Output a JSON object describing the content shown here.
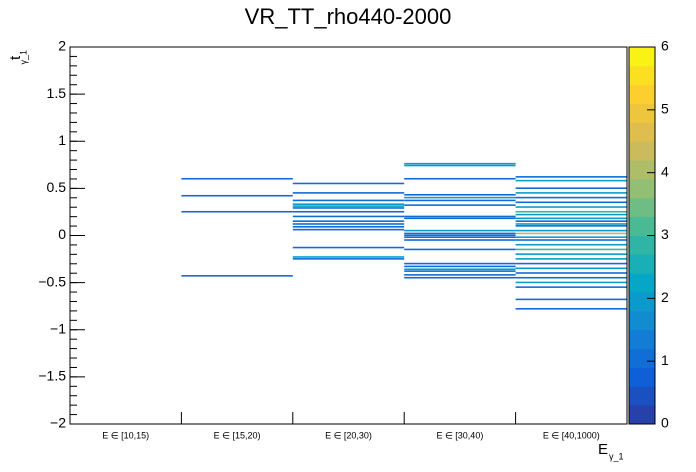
{
  "chart_data": {
    "type": "heatmap",
    "title": "VR_TT_rho440-2000",
    "categories": [
      "E ∈ [10,15)",
      "E ∈ [15,20)",
      "E ∈ [20,30)",
      "E ∈ [30,40)",
      "E ∈ [40,1000)"
    ],
    "x_label": "E",
    "x_label_sub": "γ_1",
    "y_label": "t",
    "y_label_sub": "γ_1",
    "ylim": [
      -2,
      2
    ],
    "yticks": [
      {
        "value": -2,
        "label": "−2"
      },
      {
        "value": -1.5,
        "label": "−1.5"
      },
      {
        "value": -1,
        "label": "−1"
      },
      {
        "value": -0.5,
        "label": "−0.5"
      },
      0,
      0.5,
      1,
      1.5,
      2
    ],
    "zlim": [
      0,
      6
    ],
    "zticks": [
      0,
      1,
      2,
      3,
      4,
      5,
      6
    ],
    "palette": [
      "#2c3a9e",
      "#0f5fd8",
      "#1485d4",
      "#06a7c6",
      "#38b99e",
      "#92bf73",
      "#d9ba56",
      "#fcce2e",
      "#f9fb0e"
    ],
    "cells": [
      {
        "x": 1,
        "y": 0.6,
        "z": 1
      },
      {
        "x": 1,
        "y": 0.42,
        "z": 1
      },
      {
        "x": 1,
        "y": 0.25,
        "z": 1
      },
      {
        "x": 1,
        "y": -0.43,
        "z": 1
      },
      {
        "x": 2,
        "y": 0.55,
        "z": 1
      },
      {
        "x": 2,
        "y": 0.45,
        "z": 1
      },
      {
        "x": 2,
        "y": 0.37,
        "z": 1
      },
      {
        "x": 2,
        "y": 0.33,
        "z": 2
      },
      {
        "x": 2,
        "y": 0.31,
        "z": 2
      },
      {
        "x": 2,
        "y": 0.29,
        "z": 1
      },
      {
        "x": 2,
        "y": 0.25,
        "z": 1
      },
      {
        "x": 2,
        "y": 0.2,
        "z": 1
      },
      {
        "x": 2,
        "y": 0.15,
        "z": 1
      },
      {
        "x": 2,
        "y": 0.12,
        "z": 1
      },
      {
        "x": 2,
        "y": 0.09,
        "z": 1
      },
      {
        "x": 2,
        "y": 0.06,
        "z": 1
      },
      {
        "x": 2,
        "y": -0.13,
        "z": 1
      },
      {
        "x": 2,
        "y": -0.23,
        "z": 2
      },
      {
        "x": 2,
        "y": -0.25,
        "z": 1
      },
      {
        "x": 3,
        "y": 0.76,
        "z": 2
      },
      {
        "x": 3,
        "y": 0.74,
        "z": 2
      },
      {
        "x": 3,
        "y": 0.6,
        "z": 1
      },
      {
        "x": 3,
        "y": 0.43,
        "z": 1
      },
      {
        "x": 3,
        "y": 0.4,
        "z": 2
      },
      {
        "x": 3,
        "y": 0.37,
        "z": 1
      },
      {
        "x": 3,
        "y": 0.32,
        "z": 1
      },
      {
        "x": 3,
        "y": 0.2,
        "z": 1
      },
      {
        "x": 3,
        "y": 0.18,
        "z": 1
      },
      {
        "x": 3,
        "y": 0.05,
        "z": 2
      },
      {
        "x": 3,
        "y": 0.02,
        "z": 1
      },
      {
        "x": 3,
        "y": 0,
        "z": 1
      },
      {
        "x": 3,
        "y": -0.02,
        "z": 1
      },
      {
        "x": 3,
        "y": -0.05,
        "z": 1
      },
      {
        "x": 3,
        "y": -0.15,
        "z": 1
      },
      {
        "x": 3,
        "y": -0.3,
        "z": 1
      },
      {
        "x": 3,
        "y": -0.33,
        "z": 1
      },
      {
        "x": 3,
        "y": -0.36,
        "z": 2
      },
      {
        "x": 3,
        "y": -0.38,
        "z": 1
      },
      {
        "x": 3,
        "y": -0.42,
        "z": 1
      },
      {
        "x": 3,
        "y": -0.45,
        "z": 1
      },
      {
        "x": 4,
        "y": 0.62,
        "z": 1
      },
      {
        "x": 4,
        "y": 0.58,
        "z": 2
      },
      {
        "x": 4,
        "y": 0.5,
        "z": 1
      },
      {
        "x": 4,
        "y": 0.45,
        "z": 2
      },
      {
        "x": 4,
        "y": 0.4,
        "z": 1
      },
      {
        "x": 4,
        "y": 0.35,
        "z": 1
      },
      {
        "x": 4,
        "y": 0.3,
        "z": 2
      },
      {
        "x": 4,
        "y": 0.25,
        "z": 3
      },
      {
        "x": 4,
        "y": 0.22,
        "z": 2
      },
      {
        "x": 4,
        "y": 0.18,
        "z": 2
      },
      {
        "x": 4,
        "y": 0.15,
        "z": 1
      },
      {
        "x": 4,
        "y": 0.12,
        "z": 2
      },
      {
        "x": 4,
        "y": 0.1,
        "z": 1
      },
      {
        "x": 4,
        "y": 0.05,
        "z": 2
      },
      {
        "x": 4,
        "y": 0.02,
        "z": 4
      },
      {
        "x": 4,
        "y": -0.02,
        "z": 2
      },
      {
        "x": 4,
        "y": -0.05,
        "z": 1
      },
      {
        "x": 4,
        "y": -0.1,
        "z": 2
      },
      {
        "x": 4,
        "y": -0.15,
        "z": 3
      },
      {
        "x": 4,
        "y": -0.2,
        "z": 2
      },
      {
        "x": 4,
        "y": -0.25,
        "z": 2
      },
      {
        "x": 4,
        "y": -0.3,
        "z": 1
      },
      {
        "x": 4,
        "y": -0.35,
        "z": 2
      },
      {
        "x": 4,
        "y": -0.4,
        "z": 1
      },
      {
        "x": 4,
        "y": -0.45,
        "z": 1
      },
      {
        "x": 4,
        "y": -0.5,
        "z": 2
      },
      {
        "x": 4,
        "y": -0.55,
        "z": 1
      },
      {
        "x": 4,
        "y": -0.68,
        "z": 1
      },
      {
        "x": 4,
        "y": -0.78,
        "z": 1
      }
    ]
  }
}
